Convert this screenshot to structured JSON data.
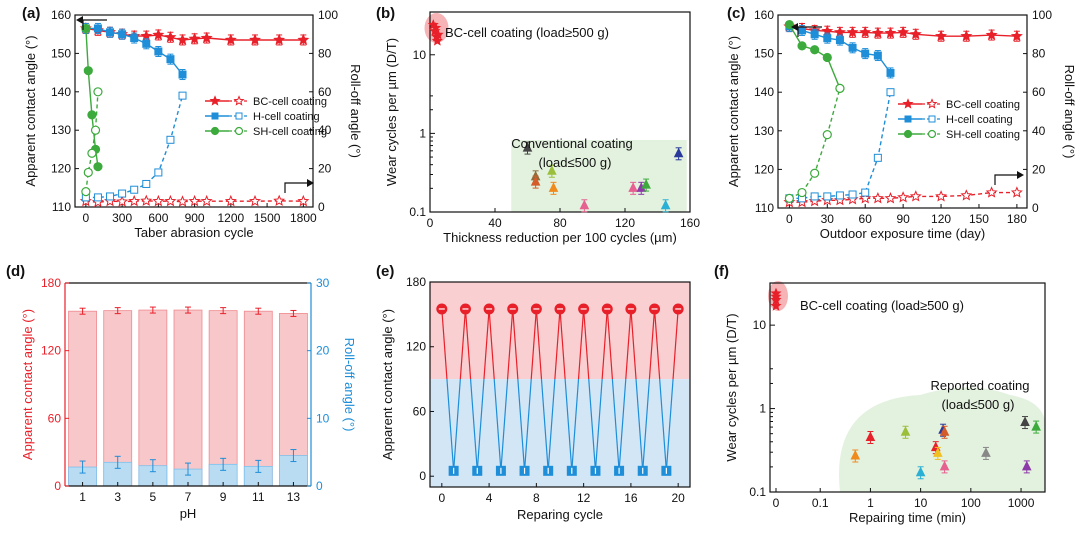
{
  "chart_data": [
    {
      "panel": "(a)",
      "type": "line",
      "xlabel": "Taber abrasion cycle",
      "ylabel": "Apparent contact angle (°)",
      "y2label": "Roll-off angle (°)",
      "xlim": [
        -90,
        1880
      ],
      "ylim": [
        110,
        160
      ],
      "y2lim": [
        0,
        100
      ],
      "xticks": [
        "0",
        "300",
        "600",
        "900",
        "1200",
        "1500",
        "1800"
      ],
      "yticks": [
        "110",
        "120",
        "130",
        "140",
        "150",
        "160"
      ],
      "y2ticks": [
        "0",
        "20",
        "40",
        "60",
        "80",
        "100"
      ],
      "legend": [
        "BC-cell coating",
        "H-cell coating",
        "SH-cell coating"
      ],
      "series": [
        {
          "name": "BC-cell CA",
          "color": "#e8202a",
          "marker": "star",
          "fill": true,
          "dash": false,
          "axis": "y",
          "x": [
            0,
            100,
            200,
            300,
            400,
            500,
            600,
            700,
            800,
            900,
            1000,
            1200,
            1400,
            1600,
            1800
          ],
          "y": [
            156.5,
            156,
            155.5,
            155,
            154.5,
            154.5,
            154.8,
            154.2,
            153.5,
            153.8,
            154,
            153.5,
            153.5,
            153.5,
            153.5
          ]
        },
        {
          "name": "BC-cell RA",
          "color": "#e8202a",
          "marker": "star",
          "fill": false,
          "dash": true,
          "axis": "y2",
          "x": [
            0,
            100,
            200,
            300,
            400,
            500,
            600,
            700,
            800,
            900,
            1000,
            1200,
            1400,
            1600,
            1800
          ],
          "y": [
            3,
            2.5,
            3,
            2.8,
            3,
            3.2,
            3,
            3,
            2.8,
            3,
            3,
            3,
            3,
            3.2,
            3
          ]
        },
        {
          "name": "H-cell CA",
          "color": "#1e8ed8",
          "marker": "square",
          "fill": true,
          "dash": false,
          "axis": "y",
          "x": [
            0,
            100,
            200,
            300,
            400,
            500,
            600,
            700,
            800
          ],
          "y": [
            156.5,
            156.5,
            155.5,
            155,
            154,
            152.5,
            150.5,
            148.5,
            144.5
          ]
        },
        {
          "name": "H-cell RA",
          "color": "#1e8ed8",
          "marker": "square",
          "fill": false,
          "dash": true,
          "axis": "y2",
          "x": [
            0,
            100,
            200,
            300,
            400,
            500,
            600,
            700,
            800
          ],
          "y": [
            5,
            5,
            5.5,
            7,
            9,
            12,
            18,
            35,
            58
          ]
        },
        {
          "name": "SH-cell CA",
          "color": "#3caa3c",
          "marker": "circle",
          "fill": true,
          "dash": false,
          "axis": "y",
          "x": [
            0,
            20,
            50,
            80,
            100
          ],
          "y": [
            156.5,
            145.5,
            134,
            125,
            120.5
          ]
        },
        {
          "name": "SH-cell RA",
          "color": "#3caa3c",
          "marker": "circle",
          "fill": false,
          "dash": true,
          "axis": "y2",
          "x": [
            0,
            20,
            50,
            80,
            100
          ],
          "y": [
            8,
            18,
            28,
            40,
            60
          ]
        }
      ]
    },
    {
      "panel": "(b)",
      "type": "scatter",
      "xlabel": "Thickness reduction per 100 cycles (µm)",
      "ylabel": "Wear cycles per µm (D/T)",
      "xlim": [
        0,
        160
      ],
      "ylim_log": [
        0.1,
        35
      ],
      "xticks": [
        "0",
        "40",
        "80",
        "120",
        "160"
      ],
      "yticks": [
        "0.1",
        "1",
        "10"
      ],
      "annotation_bc": "BC-cell coating  (load≥500 g)",
      "annotation_conv_1": "Conventional coating",
      "annotation_conv_2": "(load≤500 g)",
      "bc_points": [
        {
          "x": 2,
          "y": 24
        },
        {
          "x": 3,
          "y": 20
        },
        {
          "x": 4,
          "y": 17
        },
        {
          "x": 3.5,
          "y": 22
        },
        {
          "x": 5,
          "y": 18
        },
        {
          "x": 4.5,
          "y": 15
        }
      ],
      "conventional_points": [
        {
          "x": 60,
          "y": 0.65,
          "color": "#444444"
        },
        {
          "x": 65,
          "y": 0.28,
          "color": "#8c6d3a"
        },
        {
          "x": 65,
          "y": 0.24,
          "color": "#d45b2a"
        },
        {
          "x": 75,
          "y": 0.33,
          "color": "#9bbf3a"
        },
        {
          "x": 76,
          "y": 0.2,
          "color": "#f08a1c"
        },
        {
          "x": 95,
          "y": 0.12,
          "color": "#e66090"
        },
        {
          "x": 125,
          "y": 0.2,
          "color": "#e66090"
        },
        {
          "x": 130,
          "y": 0.2,
          "color": "#8c3aa8"
        },
        {
          "x": 133,
          "y": 0.22,
          "color": "#3caa3c"
        },
        {
          "x": 145,
          "y": 0.12,
          "color": "#2ab0d4"
        },
        {
          "x": 153,
          "y": 0.55,
          "color": "#2a3a9c"
        }
      ]
    },
    {
      "panel": "(c)",
      "type": "line",
      "xlabel": "Outdoor exposure time (day)",
      "ylabel": "Apparent contact angle (°)",
      "y2label": "Roll-off angle (°)",
      "xlim": [
        -9,
        188
      ],
      "ylim": [
        110,
        160
      ],
      "y2lim": [
        0,
        100
      ],
      "xticks": [
        "0",
        "30",
        "60",
        "90",
        "120",
        "150",
        "180"
      ],
      "yticks": [
        "110",
        "120",
        "130",
        "140",
        "150",
        "160"
      ],
      "y2ticks": [
        "0",
        "20",
        "40",
        "60",
        "80",
        "100"
      ],
      "legend": [
        "BC-cell coating",
        "H-cell coating",
        "SH-cell coating"
      ],
      "series": [
        {
          "name": "BC-cell CA",
          "color": "#e8202a",
          "marker": "star",
          "fill": true,
          "dash": false,
          "axis": "y",
          "x": [
            0,
            10,
            20,
            30,
            40,
            50,
            60,
            70,
            80,
            90,
            100,
            120,
            140,
            160,
            180
          ],
          "y": [
            157,
            156.5,
            156,
            155.8,
            155.5,
            155.5,
            155.5,
            155.3,
            155.3,
            155.5,
            155,
            154.5,
            154.5,
            154.8,
            154.5
          ]
        },
        {
          "name": "BC-cell RA",
          "color": "#e8202a",
          "marker": "star",
          "fill": false,
          "dash": true,
          "axis": "y2",
          "x": [
            0,
            10,
            20,
            30,
            40,
            50,
            60,
            70,
            80,
            90,
            100,
            120,
            140,
            160,
            180
          ],
          "y": [
            3,
            3,
            3.5,
            4,
            4,
            4.5,
            5,
            5,
            5,
            5.5,
            6,
            6,
            6.5,
            8,
            8
          ]
        },
        {
          "name": "H-cell CA",
          "color": "#1e8ed8",
          "marker": "square",
          "fill": true,
          "dash": false,
          "axis": "y",
          "x": [
            0,
            10,
            20,
            30,
            40,
            50,
            60,
            70,
            80
          ],
          "y": [
            157,
            156,
            155,
            154,
            153.5,
            151.5,
            150,
            149.5,
            145
          ]
        },
        {
          "name": "H-cell RA",
          "color": "#1e8ed8",
          "marker": "square",
          "fill": false,
          "dash": true,
          "axis": "y2",
          "x": [
            0,
            10,
            20,
            30,
            40,
            50,
            60,
            70,
            80
          ],
          "y": [
            5,
            5,
            6,
            6,
            6.5,
            7,
            8,
            26,
            60
          ]
        },
        {
          "name": "SH-cell CA",
          "color": "#3caa3c",
          "marker": "circle",
          "fill": true,
          "dash": false,
          "axis": "y",
          "x": [
            0,
            10,
            20,
            30,
            40
          ],
          "y": [
            157.5,
            152,
            151,
            149,
            141
          ]
        },
        {
          "name": "SH-cell RA",
          "color": "#3caa3c",
          "marker": "circle",
          "fill": false,
          "dash": true,
          "axis": "y2",
          "x": [
            0,
            10,
            20,
            30,
            40
          ],
          "y": [
            5,
            8,
            18,
            38,
            62
          ]
        }
      ]
    },
    {
      "panel": "(d)",
      "type": "bar",
      "xlabel": "pH",
      "ylabel": "Apparent contact angle (°)",
      "y2label": "Roll-off angle (°)",
      "categories": [
        "1",
        "3",
        "5",
        "7",
        "9",
        "11",
        "13"
      ],
      "ylim": [
        0,
        180
      ],
      "y2lim": [
        0,
        30
      ],
      "yticks": [
        "0",
        "60",
        "120",
        "180"
      ],
      "y2ticks": [
        "0",
        "10",
        "20",
        "30"
      ],
      "series": [
        {
          "name": "Apparent contact angle",
          "color": "#f8c7c9",
          "axis": "y",
          "values": [
            155,
            155.5,
            156,
            156,
            155.5,
            155,
            153
          ]
        },
        {
          "name": "Roll-off angle",
          "color": "#b9dcf3",
          "axis": "y2",
          "values": [
            2.8,
            3.5,
            3,
            2.5,
            3.2,
            2.9,
            4.5
          ]
        }
      ]
    },
    {
      "panel": "(e)",
      "type": "line",
      "xlabel": "Reparing cycle",
      "ylabel": "Apparent contact angle (°)",
      "xlim": [
        -1,
        21
      ],
      "ylim": [
        -10,
        180
      ],
      "xticks": [
        "0",
        "4",
        "8",
        "12",
        "16",
        "20"
      ],
      "yticks": [
        "0",
        "60",
        "120",
        "180"
      ],
      "x": [
        0,
        1,
        2,
        3,
        4,
        5,
        6,
        7,
        8,
        9,
        10,
        11,
        12,
        13,
        14,
        15,
        16,
        17,
        18,
        19,
        20
      ],
      "values": [
        155,
        5,
        155,
        5,
        155,
        5,
        155,
        5,
        155,
        5,
        155,
        5,
        155,
        5,
        155,
        5,
        155,
        5,
        155,
        5,
        155
      ]
    },
    {
      "panel": "(f)",
      "type": "scatter",
      "xlabel": "Repairing time (min)",
      "ylabel": "Wear cycles per µm (D/T)",
      "xlim_log": [
        0.01,
        3000
      ],
      "ylim_log": [
        0.1,
        32
      ],
      "xticks": [
        "0",
        "0.1",
        "1",
        "10",
        "100",
        "1000"
      ],
      "yticks": [
        "0.1",
        "1",
        "10"
      ],
      "annotation_bc": "BC-cell coating (load≥500 g)",
      "annotation_rep_1": "Reported coating",
      "annotation_rep_2": "(load≤500 g)",
      "bc_points": [
        {
          "x": 0,
          "y": 24
        },
        {
          "x": 0,
          "y": 20
        },
        {
          "x": 0,
          "y": 17
        },
        {
          "x": 0,
          "y": 22
        }
      ],
      "reported_points": [
        {
          "x": 0.5,
          "y": 0.27,
          "color": "#f08a1c"
        },
        {
          "x": 1,
          "y": 0.45,
          "color": "#e8202a"
        },
        {
          "x": 5,
          "y": 0.52,
          "color": "#9bbf3a"
        },
        {
          "x": 10,
          "y": 0.17,
          "color": "#2ab0d4"
        },
        {
          "x": 20,
          "y": 0.34,
          "color": "#e8202a"
        },
        {
          "x": 22,
          "y": 0.29,
          "color": "#f0c020"
        },
        {
          "x": 28,
          "y": 0.55,
          "color": "#2a3a9c"
        },
        {
          "x": 30,
          "y": 0.52,
          "color": "#d45b2a"
        },
        {
          "x": 30,
          "y": 0.2,
          "color": "#e66090"
        },
        {
          "x": 200,
          "y": 0.29,
          "color": "#888888"
        },
        {
          "x": 1200,
          "y": 0.68,
          "color": "#444444"
        },
        {
          "x": 1300,
          "y": 0.2,
          "color": "#8c3aa8"
        },
        {
          "x": 2000,
          "y": 0.6,
          "color": "#3caa3c"
        }
      ]
    }
  ]
}
